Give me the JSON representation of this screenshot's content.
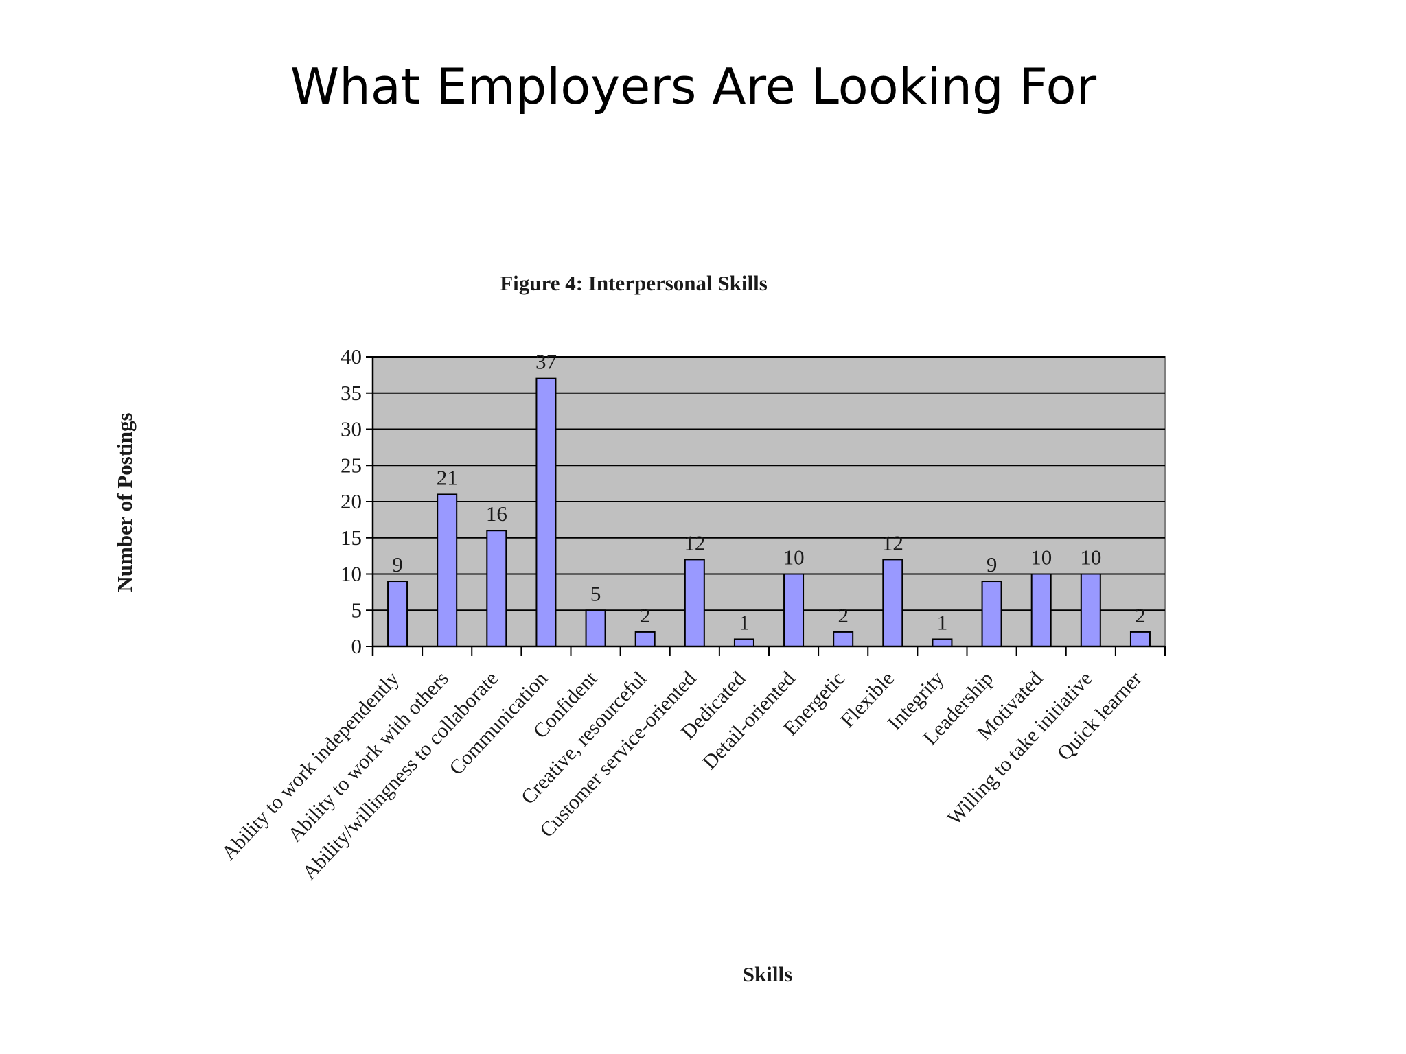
{
  "slide": {
    "title": "What Employers Are Looking For"
  },
  "chart_data": {
    "type": "bar",
    "title": "Figure 4: Interpersonal Skills",
    "xlabel": "Skills",
    "ylabel": "Number of Postings",
    "categories": [
      "Ability to work independently",
      "Ability to work with others",
      "Ability/willingness to collaborate",
      "Communication",
      "Confident",
      "Creative, resourceful",
      "Customer service-oriented",
      "Dedicated",
      "Detail-oriented",
      "Energetic",
      "Flexible",
      "Integrity",
      "Leadership",
      "Motivated",
      "Willing to take initiative",
      "Quick learner"
    ],
    "values": [
      9,
      21,
      16,
      37,
      5,
      2,
      12,
      1,
      10,
      2,
      12,
      1,
      9,
      10,
      10,
      2
    ],
    "ylim": [
      0,
      40
    ],
    "yticks": [
      0,
      5,
      10,
      15,
      20,
      25,
      30,
      35,
      40
    ],
    "grid": true,
    "legend": "none",
    "colors": {
      "bar_fill": "#9999ff",
      "bar_stroke": "#000000",
      "plot_background": "#c0c0c0",
      "gridline": "#000000"
    }
  }
}
